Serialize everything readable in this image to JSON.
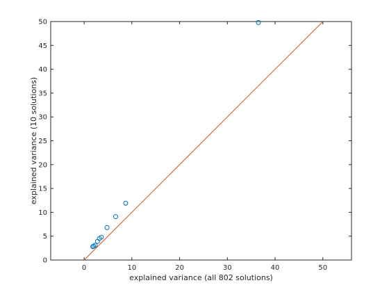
{
  "chart_data": {
    "type": "scatter",
    "title": "",
    "xlabel": "explained variance (all 802 solutions)",
    "ylabel": "explained variance (10 solutions)",
    "xlim": [
      -7,
      56
    ],
    "ylim": [
      0,
      50
    ],
    "xticks": [
      0,
      10,
      20,
      30,
      40,
      50
    ],
    "yticks": [
      0,
      5,
      10,
      15,
      20,
      25,
      30,
      35,
      40,
      45,
      50
    ],
    "grid": false,
    "legend": "none",
    "series": [
      {
        "kind": "scatter",
        "marker": "circle-open",
        "color": "#0072BD",
        "points": [
          {
            "x": 36.5,
            "y": 49.8
          },
          {
            "x": 8.7,
            "y": 11.9
          },
          {
            "x": 6.6,
            "y": 9.1
          },
          {
            "x": 4.8,
            "y": 6.8
          },
          {
            "x": 3.6,
            "y": 4.8
          },
          {
            "x": 3.2,
            "y": 4.5
          },
          {
            "x": 2.8,
            "y": 3.9
          },
          {
            "x": 2.3,
            "y": 3.1
          },
          {
            "x": 2.0,
            "y": 2.9
          },
          {
            "x": 1.8,
            "y": 2.8
          }
        ]
      },
      {
        "kind": "line",
        "color": "#D95319",
        "points": [
          {
            "x": 0,
            "y": 0
          },
          {
            "x": 50,
            "y": 50
          }
        ]
      }
    ]
  }
}
